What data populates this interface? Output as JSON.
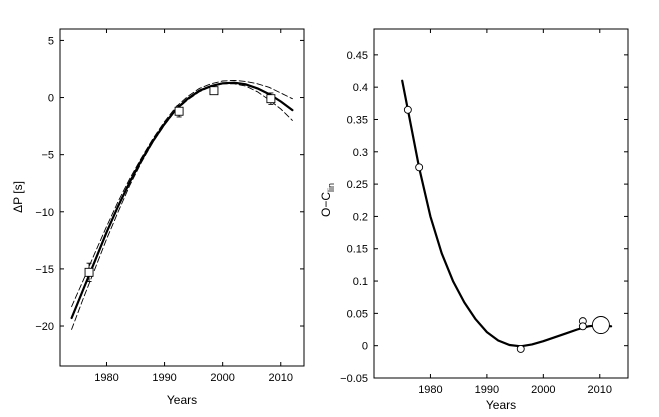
{
  "chart_data": [
    {
      "type": "line",
      "xlabel": "Years",
      "ylabel": "ΔP [s]",
      "xlim": [
        1972,
        2014
      ],
      "ylim": [
        -23.5,
        6
      ],
      "xticks": [
        1980,
        1990,
        2000,
        2010
      ],
      "yticks": [
        5,
        0,
        -5,
        -10,
        -15,
        -20
      ],
      "series": [
        {
          "name": "fit",
          "style": "solid-thick",
          "x": [
            1974,
            1976,
            1978,
            1980,
            1982,
            1984,
            1986,
            1988,
            1990,
            1992,
            1994,
            1996,
            1998,
            2000,
            2002,
            2004,
            2006,
            2008,
            2010,
            2012
          ],
          "y": [
            -19.3,
            -16.8,
            -14.3,
            -11.8,
            -9.5,
            -7.4,
            -5.5,
            -3.8,
            -2.3,
            -1.0,
            -0.1,
            0.6,
            1.0,
            1.25,
            1.3,
            1.15,
            0.8,
            0.3,
            -0.35,
            -1.1
          ]
        },
        {
          "name": "fit-upper",
          "style": "dashed",
          "x": [
            1974,
            1976,
            1978,
            1980,
            1982,
            1984,
            1986,
            1988,
            1990,
            1992,
            1994,
            1996,
            1998,
            2000,
            2002,
            2004,
            2006,
            2008,
            2010,
            2012
          ],
          "y": [
            -18.3,
            -16.0,
            -13.6,
            -11.3,
            -9.1,
            -7.1,
            -5.3,
            -3.6,
            -2.1,
            -0.8,
            0.1,
            0.8,
            1.2,
            1.45,
            1.5,
            1.4,
            1.2,
            0.9,
            0.4,
            -0.1
          ]
        },
        {
          "name": "fit-lower",
          "style": "dashed",
          "x": [
            1974,
            1976,
            1978,
            1980,
            1982,
            1984,
            1986,
            1988,
            1990,
            1992,
            1994,
            1996,
            1998,
            2000,
            2002,
            2004,
            2006,
            2008,
            2010,
            2012
          ],
          "y": [
            -20.3,
            -17.6,
            -15.0,
            -12.4,
            -10.0,
            -7.7,
            -5.7,
            -3.9,
            -2.4,
            -1.1,
            -0.2,
            0.5,
            0.95,
            1.2,
            1.2,
            1.0,
            0.5,
            -0.2,
            -1.0,
            -2.0
          ]
        }
      ],
      "points": [
        {
          "x": 1977,
          "y": -15.3,
          "err": 0.8
        },
        {
          "x": 1992.5,
          "y": -1.2,
          "err": 0.5
        },
        {
          "x": 1998.5,
          "y": 0.6,
          "err": 0.3
        },
        {
          "x": 2008.3,
          "y": -0.1,
          "err": 0.5
        }
      ]
    },
    {
      "type": "line",
      "xlabel": "Years",
      "ylabel": "O−C",
      "ylabel_sub": "lin",
      "xlim": [
        1970,
        2015
      ],
      "ylim": [
        -0.05,
        0.49
      ],
      "xticks": [
        1980,
        1990,
        2000,
        2010
      ],
      "yticks": [
        0.45,
        0.4,
        0.35,
        0.3,
        0.25,
        0.2,
        0.15,
        0.1,
        0.05,
        0,
        -0.05
      ],
      "ytick_labels": [
        "0.45",
        "0.4",
        "0.35",
        "0.3",
        "0.25",
        "0.2",
        "0.15",
        "0.1",
        "0.05",
        "0",
        "−0.05"
      ],
      "series": [
        {
          "name": "fit",
          "style": "solid-thick",
          "x": [
            1975,
            1976,
            1978,
            1980,
            1982,
            1984,
            1986,
            1988,
            1990,
            1992,
            1994,
            1996,
            1998,
            2000,
            2002,
            2004,
            2006,
            2008,
            2010,
            2012
          ],
          "y": [
            0.41,
            0.365,
            0.275,
            0.2,
            0.143,
            0.1,
            0.067,
            0.041,
            0.021,
            0.008,
            0.001,
            -0.001,
            0.002,
            0.007,
            0.013,
            0.019,
            0.025,
            0.03,
            0.032,
            0.03
          ]
        }
      ],
      "points": [
        {
          "x": 1976,
          "y": 0.365,
          "size": "small"
        },
        {
          "x": 1978,
          "y": 0.276,
          "size": "small"
        },
        {
          "x": 1996,
          "y": -0.005,
          "size": "small"
        },
        {
          "x": 2007,
          "y": 0.038,
          "size": "small"
        },
        {
          "x": 2007,
          "y": 0.03,
          "size": "small"
        },
        {
          "x": 2010.2,
          "y": 0.032,
          "size": "large"
        }
      ]
    }
  ]
}
